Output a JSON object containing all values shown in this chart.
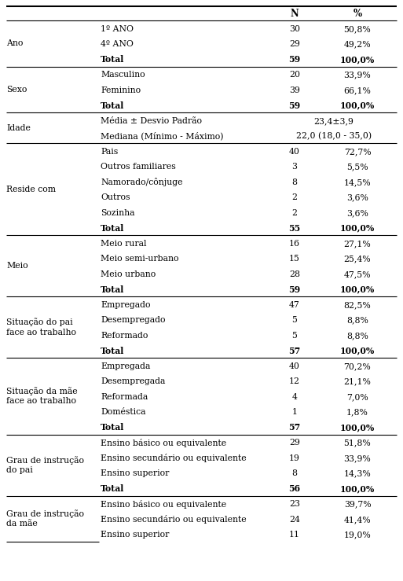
{
  "rows": [
    {
      "cat": "Ano",
      "sub": "1º ANO",
      "n": "30",
      "pct": "50,8%",
      "bold": false,
      "cat_span": 3,
      "merged_n": false
    },
    {
      "cat": "",
      "sub": "4º ANO",
      "n": "29",
      "pct": "49,2%",
      "bold": false,
      "cat_span": 0,
      "merged_n": false
    },
    {
      "cat": "",
      "sub": "Total",
      "n": "59",
      "pct": "100,0%",
      "bold": true,
      "cat_span": 0,
      "merged_n": false
    },
    {
      "cat": "Sexo",
      "sub": "Masculino",
      "n": "20",
      "pct": "33,9%",
      "bold": false,
      "cat_span": 3,
      "merged_n": false
    },
    {
      "cat": "",
      "sub": "Feminino",
      "n": "39",
      "pct": "66,1%",
      "bold": false,
      "cat_span": 0,
      "merged_n": false
    },
    {
      "cat": "",
      "sub": "Total",
      "n": "59",
      "pct": "100,0%",
      "bold": true,
      "cat_span": 0,
      "merged_n": false
    },
    {
      "cat": "Idade",
      "sub": "Média ± Desvio Padrão",
      "n": "23,4±3,9",
      "pct": "",
      "bold": false,
      "cat_span": 2,
      "merged_n": true
    },
    {
      "cat": "",
      "sub": "Mediana (Mínimo - Máximo)",
      "n": "22,0 (18,0 - 35,0)",
      "pct": "",
      "bold": false,
      "cat_span": 0,
      "merged_n": true
    },
    {
      "cat": "Reside com",
      "sub": "Pais",
      "n": "40",
      "pct": "72,7%",
      "bold": false,
      "cat_span": 6,
      "merged_n": false
    },
    {
      "cat": "",
      "sub": "Outros familiares",
      "n": "3",
      "pct": "5,5%",
      "bold": false,
      "cat_span": 0,
      "merged_n": false
    },
    {
      "cat": "",
      "sub": "Namorado/cônjuge",
      "n": "8",
      "pct": "14,5%",
      "bold": false,
      "cat_span": 0,
      "merged_n": false
    },
    {
      "cat": "",
      "sub": "Outros",
      "n": "2",
      "pct": "3,6%",
      "bold": false,
      "cat_span": 0,
      "merged_n": false
    },
    {
      "cat": "",
      "sub": "Sozinha",
      "n": "2",
      "pct": "3,6%",
      "bold": false,
      "cat_span": 0,
      "merged_n": false
    },
    {
      "cat": "",
      "sub": "Total",
      "n": "55",
      "pct": "100,0%",
      "bold": true,
      "cat_span": 0,
      "merged_n": false
    },
    {
      "cat": "Meio",
      "sub": "Meio rural",
      "n": "16",
      "pct": "27,1%",
      "bold": false,
      "cat_span": 4,
      "merged_n": false
    },
    {
      "cat": "",
      "sub": "Meio semi-urbano",
      "n": "15",
      "pct": "25,4%",
      "bold": false,
      "cat_span": 0,
      "merged_n": false
    },
    {
      "cat": "",
      "sub": "Meio urbano",
      "n": "28",
      "pct": "47,5%",
      "bold": false,
      "cat_span": 0,
      "merged_n": false
    },
    {
      "cat": "",
      "sub": "Total",
      "n": "59",
      "pct": "100,0%",
      "bold": true,
      "cat_span": 0,
      "merged_n": false
    },
    {
      "cat": "Situação do pai\nface ao trabalho",
      "sub": "Empregado",
      "n": "47",
      "pct": "82,5%",
      "bold": false,
      "cat_span": 4,
      "merged_n": false
    },
    {
      "cat": "",
      "sub": "Desempregado",
      "n": "5",
      "pct": "8,8%",
      "bold": false,
      "cat_span": 0,
      "merged_n": false
    },
    {
      "cat": "",
      "sub": "Reformado",
      "n": "5",
      "pct": "8,8%",
      "bold": false,
      "cat_span": 0,
      "merged_n": false
    },
    {
      "cat": "",
      "sub": "Total",
      "n": "57",
      "pct": "100,0%",
      "bold": true,
      "cat_span": 0,
      "merged_n": false
    },
    {
      "cat": "Situação da mãe\nface ao trabalho",
      "sub": "Empregada",
      "n": "40",
      "pct": "70,2%",
      "bold": false,
      "cat_span": 5,
      "merged_n": false
    },
    {
      "cat": "",
      "sub": "Desempregada",
      "n": "12",
      "pct": "21,1%",
      "bold": false,
      "cat_span": 0,
      "merged_n": false
    },
    {
      "cat": "",
      "sub": "Reformada",
      "n": "4",
      "pct": "7,0%",
      "bold": false,
      "cat_span": 0,
      "merged_n": false
    },
    {
      "cat": "",
      "sub": "Doméstica",
      "n": "1",
      "pct": "1,8%",
      "bold": false,
      "cat_span": 0,
      "merged_n": false
    },
    {
      "cat": "",
      "sub": "Total",
      "n": "57",
      "pct": "100,0%",
      "bold": true,
      "cat_span": 0,
      "merged_n": false
    },
    {
      "cat": "Grau de instrução\ndo pai",
      "sub": "Ensino básico ou equivalente",
      "n": "29",
      "pct": "51,8%",
      "bold": false,
      "cat_span": 4,
      "merged_n": false
    },
    {
      "cat": "",
      "sub": "Ensino secundário ou equivalente",
      "n": "19",
      "pct": "33,9%",
      "bold": false,
      "cat_span": 0,
      "merged_n": false
    },
    {
      "cat": "",
      "sub": "Ensino superior",
      "n": "8",
      "pct": "14,3%",
      "bold": false,
      "cat_span": 0,
      "merged_n": false
    },
    {
      "cat": "",
      "sub": "Total",
      "n": "56",
      "pct": "100,0%",
      "bold": true,
      "cat_span": 0,
      "merged_n": false
    },
    {
      "cat": "Grau de instrução\nda mãe",
      "sub": "Ensino básico ou equivalente",
      "n": "23",
      "pct": "39,7%",
      "bold": false,
      "cat_span": 3,
      "merged_n": false
    },
    {
      "cat": "",
      "sub": "Ensino secundário ou equivalente",
      "n": "24",
      "pct": "41,4%",
      "bold": false,
      "cat_span": 0,
      "merged_n": false
    },
    {
      "cat": "",
      "sub": "Ensino superior",
      "n": "11",
      "pct": "19,0%",
      "bold": false,
      "cat_span": 0,
      "merged_n": false
    }
  ],
  "section_start_rows": [
    0,
    3,
    6,
    8,
    14,
    18,
    22,
    27,
    31
  ],
  "last_section_has_no_total": true,
  "bg_color": "#ffffff",
  "text_color": "#000000",
  "font_size": 7.8,
  "header_font_size": 8.5
}
